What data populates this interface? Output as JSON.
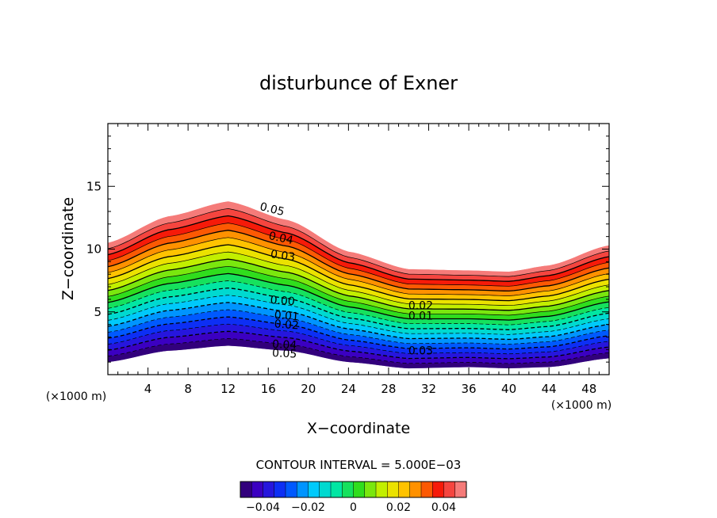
{
  "chart_data": {
    "type": "contour",
    "title": "disturbunce of Exner",
    "xlabel": "X−coordinate",
    "ylabel": "Z−coordinate",
    "x_unit_left": "(×1000 m)",
    "x_unit_right": "(×1000 m)",
    "xlim": [
      0,
      50
    ],
    "ylim": [
      0,
      20
    ],
    "x_ticks": [
      4,
      8,
      12,
      16,
      20,
      24,
      28,
      32,
      36,
      40,
      44,
      48
    ],
    "y_ticks": [
      5,
      10,
      15
    ],
    "contour_interval_text": "CONTOUR INTERVAL = 5.000E−03",
    "value_range": [
      -0.05,
      0.05
    ],
    "contour_interval": 0.005,
    "terrain_top": [
      {
        "x": 0,
        "z": 10.5
      },
      {
        "x": 6,
        "z": 12.6
      },
      {
        "x": 12,
        "z": 13.8
      },
      {
        "x": 18,
        "z": 12.3
      },
      {
        "x": 24,
        "z": 9.8
      },
      {
        "x": 30,
        "z": 8.4
      },
      {
        "x": 36,
        "z": 8.3
      },
      {
        "x": 40,
        "z": 8.2
      },
      {
        "x": 44,
        "z": 8.7
      },
      {
        "x": 50,
        "z": 10.3
      }
    ],
    "terrain_bottom": [
      {
        "x": 0,
        "z": 1.0
      },
      {
        "x": 6,
        "z": 1.9
      },
      {
        "x": 12,
        "z": 2.3
      },
      {
        "x": 18,
        "z": 1.9
      },
      {
        "x": 24,
        "z": 1.0
      },
      {
        "x": 30,
        "z": 0.5
      },
      {
        "x": 36,
        "z": 0.6
      },
      {
        "x": 40,
        "z": 0.5
      },
      {
        "x": 44,
        "z": 0.6
      },
      {
        "x": 50,
        "z": 1.3
      }
    ],
    "contour_labels": [
      {
        "text": "0.05",
        "x": 16.3,
        "z": 12.9,
        "rotate": 14
      },
      {
        "text": "0.04",
        "x": 17.2,
        "z": 10.6,
        "rotate": 12
      },
      {
        "text": "0.03",
        "x": 17.4,
        "z": 9.2,
        "rotate": 8
      },
      {
        "text": "0.00",
        "x": 17.4,
        "z": 5.6,
        "rotate": 4
      },
      {
        "text": "0.01",
        "x": 17.8,
        "z": 4.4,
        "rotate": 4
      },
      {
        "text": "0.02",
        "x": 17.8,
        "z": 3.7,
        "rotate": 4
      },
      {
        "text": "0.04",
        "x": 17.6,
        "z": 2.1,
        "rotate": 3
      },
      {
        "text": "0.05",
        "x": 17.6,
        "z": 1.4,
        "rotate": 3
      },
      {
        "text": "0.02",
        "x": 31.2,
        "z": 5.2,
        "rotate": 0
      },
      {
        "text": "0.01",
        "x": 31.2,
        "z": 4.4,
        "rotate": 0
      },
      {
        "text": "0.03",
        "x": 31.2,
        "z": 1.6,
        "rotate": 0
      }
    ],
    "colorbar": {
      "min": -0.05,
      "max": 0.05,
      "tick_values": [
        -0.04,
        -0.02,
        0,
        0.02,
        0.04
      ],
      "tick_labels": [
        "−0.04",
        "−0.02",
        "0",
        "0.02",
        "0.04"
      ]
    }
  }
}
